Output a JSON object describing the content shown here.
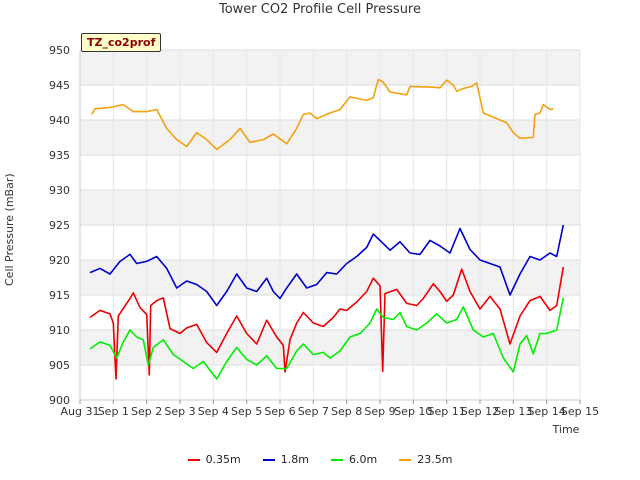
{
  "chart_data": {
    "type": "line",
    "title": "Tower CO2 Profile Cell Pressure",
    "xlabel": "Time",
    "ylabel": "Cell Pressure (mBar)",
    "site_label": "TZ_co2prof",
    "ylim": [
      900,
      950
    ],
    "xlim": [
      0,
      15
    ],
    "yticks": [
      900,
      905,
      910,
      915,
      920,
      925,
      930,
      935,
      940,
      945,
      950
    ],
    "xtick_labels": [
      "Aug 31",
      "Sep 1",
      "Sep 2",
      "Sep 3",
      "Sep 4",
      "Sep 5",
      "Sep 6",
      "Sep 7",
      "Sep 8",
      "Sep 9",
      "Sep 10",
      "Sep 11",
      "Sep 12",
      "Sep 13",
      "Sep 14",
      "Sep 15"
    ],
    "series": [
      {
        "name": "0.35m",
        "color": "#ee0000",
        "points": [
          [
            0.3,
            911.8
          ],
          [
            0.6,
            912.8
          ],
          [
            0.9,
            912.3
          ],
          [
            1.0,
            911.0
          ],
          [
            1.08,
            903.0
          ],
          [
            1.15,
            912.0
          ],
          [
            1.5,
            914.5
          ],
          [
            1.6,
            915.3
          ],
          [
            1.8,
            913.2
          ],
          [
            2.0,
            912.2
          ],
          [
            2.08,
            903.6
          ],
          [
            2.12,
            913.5
          ],
          [
            2.3,
            914.2
          ],
          [
            2.5,
            914.6
          ],
          [
            2.7,
            910.2
          ],
          [
            3.0,
            909.5
          ],
          [
            3.2,
            910.3
          ],
          [
            3.5,
            910.8
          ],
          [
            3.8,
            908.2
          ],
          [
            4.1,
            906.8
          ],
          [
            4.4,
            909.5
          ],
          [
            4.7,
            912.0
          ],
          [
            5.0,
            909.5
          ],
          [
            5.3,
            908.0
          ],
          [
            5.6,
            911.4
          ],
          [
            5.9,
            909.0
          ],
          [
            6.1,
            907.8
          ],
          [
            6.15,
            904.0
          ],
          [
            6.3,
            908.6
          ],
          [
            6.5,
            911.0
          ],
          [
            6.7,
            912.5
          ],
          [
            7.0,
            911.0
          ],
          [
            7.3,
            910.5
          ],
          [
            7.6,
            911.8
          ],
          [
            7.8,
            913.0
          ],
          [
            8.0,
            912.8
          ],
          [
            8.3,
            914.0
          ],
          [
            8.6,
            915.5
          ],
          [
            8.8,
            917.4
          ],
          [
            9.0,
            916.3
          ],
          [
            9.08,
            904.1
          ],
          [
            9.15,
            915.2
          ],
          [
            9.5,
            915.8
          ],
          [
            9.8,
            913.8
          ],
          [
            10.1,
            913.5
          ],
          [
            10.3,
            914.5
          ],
          [
            10.6,
            916.6
          ],
          [
            10.8,
            915.5
          ],
          [
            11.0,
            914.1
          ],
          [
            11.2,
            915.0
          ],
          [
            11.45,
            918.7
          ],
          [
            11.7,
            915.5
          ],
          [
            12.0,
            913.0
          ],
          [
            12.3,
            914.8
          ],
          [
            12.6,
            913.0
          ],
          [
            12.9,
            908.0
          ],
          [
            13.2,
            912.0
          ],
          [
            13.5,
            914.2
          ],
          [
            13.8,
            914.8
          ],
          [
            14.1,
            912.8
          ],
          [
            14.3,
            913.5
          ],
          [
            14.5,
            919.0
          ]
        ]
      },
      {
        "name": "1.8m",
        "color": "#0000cc",
        "points": [
          [
            0.3,
            918.2
          ],
          [
            0.6,
            918.8
          ],
          [
            0.9,
            918.0
          ],
          [
            1.2,
            919.8
          ],
          [
            1.5,
            920.8
          ],
          [
            1.7,
            919.5
          ],
          [
            2.0,
            919.8
          ],
          [
            2.3,
            920.5
          ],
          [
            2.6,
            918.8
          ],
          [
            2.9,
            916.0
          ],
          [
            3.2,
            917.0
          ],
          [
            3.5,
            916.5
          ],
          [
            3.8,
            915.5
          ],
          [
            4.1,
            913.5
          ],
          [
            4.4,
            915.5
          ],
          [
            4.7,
            918.0
          ],
          [
            5.0,
            916.0
          ],
          [
            5.3,
            915.5
          ],
          [
            5.6,
            917.4
          ],
          [
            5.8,
            915.5
          ],
          [
            6.0,
            914.5
          ],
          [
            6.2,
            916.0
          ],
          [
            6.5,
            918.0
          ],
          [
            6.8,
            916.0
          ],
          [
            7.1,
            916.5
          ],
          [
            7.4,
            918.2
          ],
          [
            7.7,
            918.0
          ],
          [
            8.0,
            919.5
          ],
          [
            8.3,
            920.5
          ],
          [
            8.6,
            921.8
          ],
          [
            8.8,
            923.7
          ],
          [
            9.0,
            922.8
          ],
          [
            9.3,
            921.4
          ],
          [
            9.6,
            922.6
          ],
          [
            9.9,
            921.0
          ],
          [
            10.2,
            920.8
          ],
          [
            10.5,
            922.8
          ],
          [
            10.8,
            922.0
          ],
          [
            11.1,
            921.0
          ],
          [
            11.4,
            924.5
          ],
          [
            11.7,
            921.5
          ],
          [
            12.0,
            920.0
          ],
          [
            12.3,
            919.5
          ],
          [
            12.6,
            919.0
          ],
          [
            12.9,
            915.0
          ],
          [
            13.2,
            918.0
          ],
          [
            13.5,
            920.5
          ],
          [
            13.8,
            920.0
          ],
          [
            14.1,
            921.0
          ],
          [
            14.3,
            920.5
          ],
          [
            14.5,
            925.0
          ]
        ]
      },
      {
        "name": "6.0m",
        "color": "#00ee00",
        "points": [
          [
            0.3,
            907.3
          ],
          [
            0.6,
            908.3
          ],
          [
            0.9,
            907.8
          ],
          [
            1.1,
            906.0
          ],
          [
            1.3,
            908.3
          ],
          [
            1.5,
            910.0
          ],
          [
            1.7,
            909.0
          ],
          [
            1.9,
            908.6
          ],
          [
            2.05,
            905.0
          ],
          [
            2.2,
            907.5
          ],
          [
            2.5,
            908.6
          ],
          [
            2.8,
            906.5
          ],
          [
            3.1,
            905.5
          ],
          [
            3.4,
            904.5
          ],
          [
            3.7,
            905.5
          ],
          [
            4.1,
            903.0
          ],
          [
            4.4,
            905.5
          ],
          [
            4.7,
            907.5
          ],
          [
            5.0,
            905.8
          ],
          [
            5.3,
            905.0
          ],
          [
            5.6,
            906.3
          ],
          [
            5.9,
            904.5
          ],
          [
            6.2,
            904.5
          ],
          [
            6.5,
            907.0
          ],
          [
            6.7,
            908.0
          ],
          [
            7.0,
            906.5
          ],
          [
            7.3,
            906.8
          ],
          [
            7.5,
            906.0
          ],
          [
            7.8,
            907.0
          ],
          [
            8.1,
            909.0
          ],
          [
            8.4,
            909.5
          ],
          [
            8.7,
            911.0
          ],
          [
            8.9,
            913.0
          ],
          [
            9.1,
            911.8
          ],
          [
            9.4,
            911.5
          ],
          [
            9.6,
            912.5
          ],
          [
            9.8,
            910.5
          ],
          [
            10.1,
            910.0
          ],
          [
            10.4,
            911.0
          ],
          [
            10.7,
            912.3
          ],
          [
            11.0,
            911.0
          ],
          [
            11.3,
            911.5
          ],
          [
            11.5,
            913.3
          ],
          [
            11.8,
            910.0
          ],
          [
            12.1,
            909.0
          ],
          [
            12.4,
            909.5
          ],
          [
            12.7,
            906.0
          ],
          [
            13.0,
            904.0
          ],
          [
            13.2,
            908.0
          ],
          [
            13.4,
            909.2
          ],
          [
            13.6,
            906.6
          ],
          [
            13.8,
            909.5
          ],
          [
            14.0,
            909.5
          ],
          [
            14.3,
            910.0
          ],
          [
            14.5,
            914.6
          ]
        ]
      },
      {
        "name": "23.5m",
        "color": "#f5a010",
        "points": [
          [
            0.35,
            940.8
          ],
          [
            0.45,
            941.6
          ],
          [
            0.9,
            941.8
          ],
          [
            1.3,
            942.2
          ],
          [
            1.6,
            941.2
          ],
          [
            2.0,
            941.2
          ],
          [
            2.3,
            941.5
          ],
          [
            2.6,
            938.8
          ],
          [
            2.9,
            937.2
          ],
          [
            3.2,
            936.2
          ],
          [
            3.5,
            938.2
          ],
          [
            3.8,
            937.2
          ],
          [
            4.1,
            935.8
          ],
          [
            4.5,
            937.2
          ],
          [
            4.8,
            938.8
          ],
          [
            5.1,
            936.8
          ],
          [
            5.5,
            937.2
          ],
          [
            5.8,
            938.0
          ],
          [
            6.2,
            936.6
          ],
          [
            6.5,
            938.8
          ],
          [
            6.7,
            940.8
          ],
          [
            6.9,
            941.0
          ],
          [
            7.1,
            940.2
          ],
          [
            7.5,
            941.0
          ],
          [
            7.8,
            941.5
          ],
          [
            8.1,
            943.3
          ],
          [
            8.4,
            943.0
          ],
          [
            8.6,
            942.8
          ],
          [
            8.8,
            943.2
          ],
          [
            8.95,
            945.8
          ],
          [
            9.1,
            945.4
          ],
          [
            9.3,
            944.0
          ],
          [
            9.8,
            943.6
          ],
          [
            9.9,
            944.8
          ],
          [
            10.5,
            944.7
          ],
          [
            10.8,
            944.6
          ],
          [
            11.0,
            945.7
          ],
          [
            11.2,
            945.0
          ],
          [
            11.3,
            944.1
          ],
          [
            11.5,
            944.5
          ],
          [
            11.75,
            944.8
          ],
          [
            11.9,
            945.3
          ],
          [
            12.1,
            941.0
          ],
          [
            12.5,
            940.2
          ],
          [
            12.8,
            939.6
          ],
          [
            13.0,
            938.2
          ],
          [
            13.2,
            937.4
          ],
          [
            13.6,
            937.5
          ],
          [
            13.65,
            940.8
          ],
          [
            13.8,
            941.0
          ],
          [
            13.9,
            942.2
          ],
          [
            14.1,
            941.5
          ],
          [
            14.2,
            941.6
          ]
        ]
      }
    ],
    "legend": [
      "0.35m",
      "1.8m",
      "6.0m",
      "23.5m"
    ],
    "grid": true,
    "legend_position": "bottom-center"
  }
}
